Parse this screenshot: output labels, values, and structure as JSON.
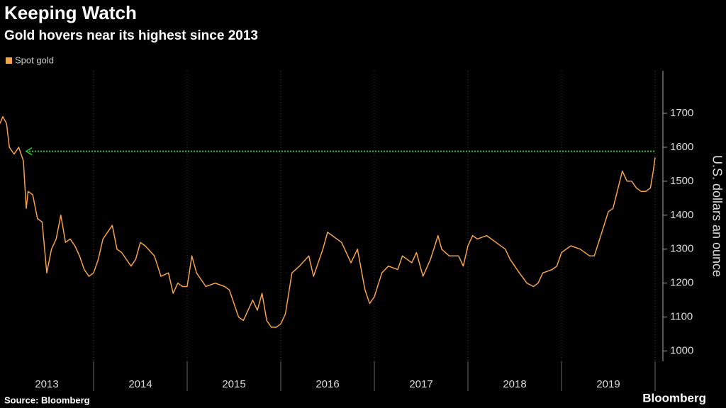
{
  "chart_data": {
    "type": "line",
    "title": "Keeping Watch",
    "subtitle": "Gold hovers near its highest since 2013",
    "y_label": "U.S. dollars an ounce",
    "source": "Source: Bloomberg",
    "brand": "Bloomberg",
    "x": [
      2013.0,
      2013.03,
      2013.07,
      2013.1,
      2013.15,
      2013.2,
      2013.25,
      2013.28,
      2013.3,
      2013.35,
      2013.4,
      2013.45,
      2013.5,
      2013.55,
      2013.6,
      2013.65,
      2013.7,
      2013.75,
      2013.8,
      2013.85,
      2013.9,
      2013.95,
      2014.0,
      2014.05,
      2014.1,
      2014.2,
      2014.25,
      2014.3,
      2014.4,
      2014.45,
      2014.5,
      2014.55,
      2014.65,
      2014.72,
      2014.8,
      2014.85,
      2014.9,
      2014.95,
      2015.0,
      2015.05,
      2015.1,
      2015.2,
      2015.3,
      2015.4,
      2015.45,
      2015.55,
      2015.6,
      2015.7,
      2015.75,
      2015.8,
      2015.85,
      2015.9,
      2015.95,
      2016.0,
      2016.05,
      2016.12,
      2016.2,
      2016.3,
      2016.35,
      2016.45,
      2016.5,
      2016.55,
      2016.65,
      2016.75,
      2016.82,
      2016.9,
      2016.95,
      2017.0,
      2017.08,
      2017.15,
      2017.25,
      2017.3,
      2017.4,
      2017.45,
      2017.52,
      2017.6,
      2017.68,
      2017.72,
      2017.8,
      2017.9,
      2017.95,
      2018.0,
      2018.05,
      2018.1,
      2018.2,
      2018.3,
      2018.4,
      2018.45,
      2018.55,
      2018.63,
      2018.7,
      2018.75,
      2018.8,
      2018.9,
      2018.95,
      2019.0,
      2019.1,
      2019.2,
      2019.3,
      2019.35,
      2019.42,
      2019.5,
      2019.55,
      2019.65,
      2019.7,
      2019.75,
      2019.8,
      2019.85,
      2019.9,
      2019.95,
      2019.98,
      2020.0
    ],
    "series": [
      {
        "name": "Spot gold",
        "color": "#f5a24b",
        "values": [
          1670,
          1690,
          1670,
          1600,
          1580,
          1600,
          1560,
          1420,
          1470,
          1460,
          1390,
          1380,
          1230,
          1300,
          1330,
          1400,
          1320,
          1330,
          1310,
          1280,
          1240,
          1220,
          1230,
          1270,
          1330,
          1370,
          1300,
          1290,
          1250,
          1270,
          1320,
          1310,
          1280,
          1220,
          1230,
          1170,
          1200,
          1190,
          1190,
          1280,
          1230,
          1190,
          1200,
          1190,
          1180,
          1100,
          1090,
          1150,
          1120,
          1170,
          1090,
          1070,
          1070,
          1080,
          1110,
          1230,
          1250,
          1280,
          1220,
          1300,
          1350,
          1340,
          1320,
          1260,
          1300,
          1180,
          1140,
          1160,
          1230,
          1250,
          1240,
          1280,
          1260,
          1290,
          1220,
          1270,
          1340,
          1300,
          1280,
          1280,
          1250,
          1310,
          1340,
          1330,
          1340,
          1320,
          1300,
          1270,
          1230,
          1200,
          1190,
          1200,
          1230,
          1240,
          1250,
          1290,
          1310,
          1300,
          1280,
          1280,
          1340,
          1410,
          1420,
          1530,
          1500,
          1500,
          1480,
          1470,
          1470,
          1480,
          1530,
          1570
        ]
      }
    ],
    "reference_line": {
      "value": 1588,
      "start": 2013.28,
      "color": "#2ecc2e"
    },
    "xlim": [
      2013,
      2020
    ],
    "xticks": [
      {
        "value": 2013.5,
        "label": "2013"
      },
      {
        "value": 2014.5,
        "label": "2014"
      },
      {
        "value": 2015.5,
        "label": "2015"
      },
      {
        "value": 2016.5,
        "label": "2016"
      },
      {
        "value": 2017.5,
        "label": "2017"
      },
      {
        "value": 2018.5,
        "label": "2018"
      },
      {
        "value": 2019.5,
        "label": "2019"
      }
    ],
    "x_separators": [
      2014,
      2015,
      2016,
      2017,
      2018,
      2019,
      2020
    ],
    "ylim": [
      970,
      1825
    ],
    "yticks": [
      1000,
      1100,
      1200,
      1300,
      1400,
      1500,
      1600,
      1700
    ]
  }
}
